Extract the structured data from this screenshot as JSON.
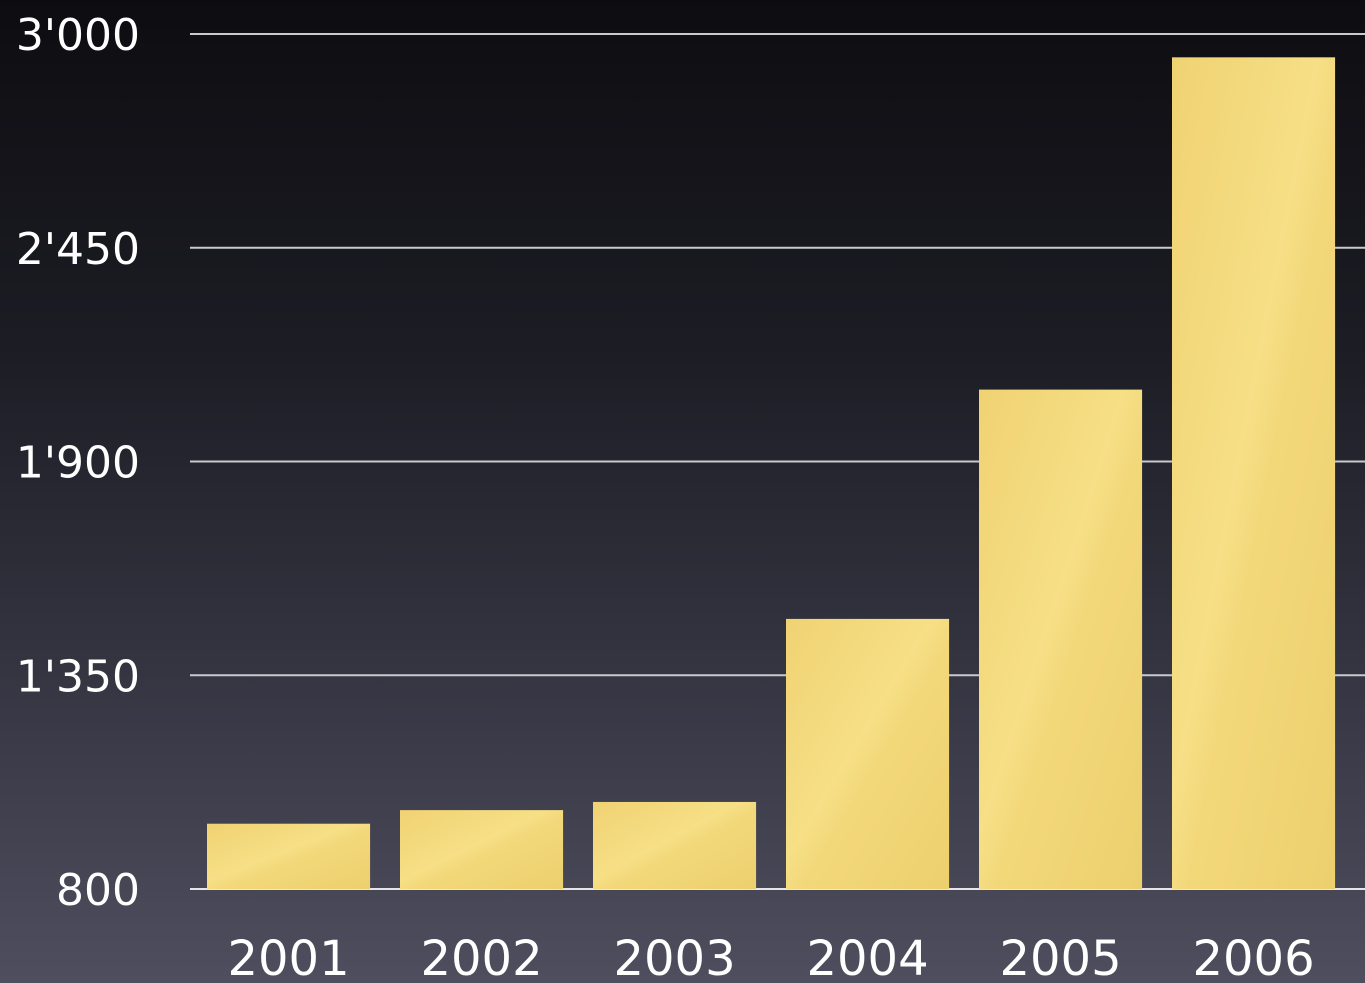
{
  "chart_data": {
    "type": "bar",
    "title": "",
    "xlabel": "",
    "ylabel": "",
    "categories": [
      "2001",
      "2002",
      "2003",
      "2004",
      "2005",
      "2006"
    ],
    "values": [
      968,
      1003,
      1024,
      1495,
      2085,
      2940
    ],
    "ylim": [
      800,
      3000
    ],
    "yticks": [
      800,
      1350,
      1900,
      2450,
      3000
    ],
    "ytick_labels": [
      "800",
      "1'350",
      "1'900",
      "2'450",
      "3'000"
    ],
    "grid": true,
    "legend": "none",
    "colors": {
      "bar": "#f2d878",
      "bar_edge": "#e8c860",
      "grid": "#c9c9cf",
      "text": "#ffffff"
    }
  }
}
